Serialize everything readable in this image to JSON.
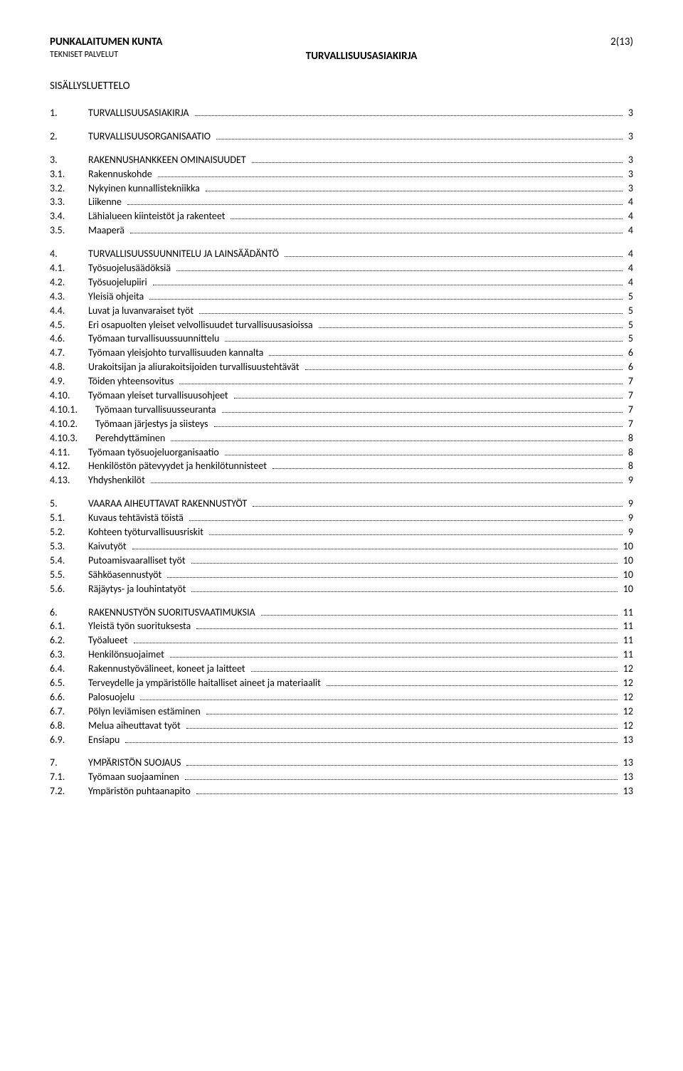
{
  "header": {
    "org": "PUNKALAITUMEN KUNTA",
    "dept": "TEKNISET PALVELUT",
    "docTitle": "TURVALLISUUSASIAKIRJA",
    "pageInfo": "2(13)"
  },
  "tocTitle": "SISÄLLYSLUETTELO",
  "toc": [
    {
      "entries": [
        {
          "num": "1.",
          "text": "TURVALLISUUSASIAKIRJA",
          "page": "3",
          "level": 0
        }
      ]
    },
    {
      "entries": [
        {
          "num": "2.",
          "text": "TURVALLISUUSORGANISAATIO",
          "page": "3",
          "level": 0
        }
      ]
    },
    {
      "entries": [
        {
          "num": "3.",
          "text": "RAKENNUSHANKKEEN OMINAISUUDET",
          "page": "3",
          "level": 0
        },
        {
          "num": "3.1.",
          "text": "Rakennuskohde",
          "page": "3",
          "level": 1
        },
        {
          "num": "3.2.",
          "text": "Nykyinen kunnallistekniikka",
          "page": "3",
          "level": 1
        },
        {
          "num": "3.3.",
          "text": "Liikenne",
          "page": "4",
          "level": 1
        },
        {
          "num": "3.4.",
          "text": "Lähialueen kiinteistöt ja rakenteet",
          "page": "4",
          "level": 1
        },
        {
          "num": "3.5.",
          "text": "Maaperä",
          "page": "4",
          "level": 1
        }
      ]
    },
    {
      "entries": [
        {
          "num": "4.",
          "text": "TURVALLISUUSSUUNNITELU JA LAINSÄÄDÄNTÖ",
          "page": "4",
          "level": 0
        },
        {
          "num": "4.1.",
          "text": "Työsuojelusäädöksiä",
          "page": "4",
          "level": 1
        },
        {
          "num": "4.2.",
          "text": "Työsuojelupiiri",
          "page": "4",
          "level": 1
        },
        {
          "num": "4.3.",
          "text": "Yleisiä ohjeita",
          "page": "5",
          "level": 1
        },
        {
          "num": "4.4.",
          "text": "Luvat ja luvanvaraiset työt",
          "page": "5",
          "level": 1
        },
        {
          "num": "4.5.",
          "text": "Eri osapuolten yleiset velvollisuudet turvallisuusasioissa",
          "page": "5",
          "level": 1
        },
        {
          "num": "4.6.",
          "text": "Työmaan turvallisuussuunnittelu",
          "page": "5",
          "level": 1
        },
        {
          "num": "4.7.",
          "text": "Työmaan yleisjohto turvallisuuden kannalta",
          "page": "6",
          "level": 1
        },
        {
          "num": "4.8.",
          "text": "Urakoitsijan ja aliurakoitsijoiden turvallisuustehtävät",
          "page": "6",
          "level": 1
        },
        {
          "num": "4.9.",
          "text": "Töiden yhteensovitus",
          "page": "7",
          "level": 1
        },
        {
          "num": "4.10.",
          "text": "Työmaan yleiset turvallisuusohjeet",
          "page": "7",
          "level": 1
        },
        {
          "num": "4.10.1.",
          "text": "Työmaan turvallisuusseuranta",
          "page": "7",
          "level": 2
        },
        {
          "num": "4.10.2.",
          "text": "Työmaan järjestys ja siisteys",
          "page": "7",
          "level": 2
        },
        {
          "num": "4.10.3.",
          "text": "Perehdyttäminen",
          "page": "8",
          "level": 2
        },
        {
          "num": "4.11.",
          "text": "Työmaan työsuojeluorganisaatio",
          "page": "8",
          "level": 1
        },
        {
          "num": "4.12.",
          "text": "Henkilöstön pätevyydet ja henkilötunnisteet",
          "page": "8",
          "level": 1
        },
        {
          "num": "4.13.",
          "text": "Yhdyshenkilöt",
          "page": "9",
          "level": 1
        }
      ]
    },
    {
      "entries": [
        {
          "num": "5.",
          "text": "VAARAA AIHEUTTAVAT RAKENNUSTYÖT",
          "page": "9",
          "level": 0
        },
        {
          "num": "5.1.",
          "text": "Kuvaus tehtävistä töistä",
          "page": "9",
          "level": 1
        },
        {
          "num": "5.2.",
          "text": "Kohteen työturvallisuusriskit",
          "page": "9",
          "level": 1
        },
        {
          "num": "5.3.",
          "text": "Kaivutyöt",
          "page": "10",
          "level": 1
        },
        {
          "num": "5.4.",
          "text": "Putoamisvaaralliset työt",
          "page": "10",
          "level": 1
        },
        {
          "num": "5.5.",
          "text": "Sähköasennustyöt",
          "page": "10",
          "level": 1
        },
        {
          "num": "5.6.",
          "text": "Räjäytys- ja louhintatyöt",
          "page": "10",
          "level": 1
        }
      ]
    },
    {
      "entries": [
        {
          "num": "6.",
          "text": "RAKENNUSTYÖN SUORITUSVAATIMUKSIA",
          "page": "11",
          "level": 0
        },
        {
          "num": "6.1.",
          "text": "Yleistä työn suorituksesta",
          "page": "11",
          "level": 1
        },
        {
          "num": "6.2.",
          "text": "Työalueet",
          "page": "11",
          "level": 1
        },
        {
          "num": "6.3.",
          "text": "Henkilönsuojaimet",
          "page": "11",
          "level": 1
        },
        {
          "num": "6.4.",
          "text": "Rakennustyövälineet, koneet ja laitteet",
          "page": "12",
          "level": 1
        },
        {
          "num": "6.5.",
          "text": "Terveydelle ja ympäristölle haitalliset aineet ja materiaalit",
          "page": "12",
          "level": 1
        },
        {
          "num": "6.6.",
          "text": "Palosuojelu",
          "page": "12",
          "level": 1
        },
        {
          "num": "6.7.",
          "text": "Pölyn leviämisen estäminen",
          "page": "12",
          "level": 1
        },
        {
          "num": "6.8.",
          "text": "Melua aiheuttavat työt",
          "page": "12",
          "level": 1
        },
        {
          "num": "6.9.",
          "text": "Ensiapu",
          "page": "13",
          "level": 1
        }
      ]
    },
    {
      "entries": [
        {
          "num": "7.",
          "text": "YMPÄRISTÖN SUOJAUS",
          "page": "13",
          "level": 0
        },
        {
          "num": "7.1.",
          "text": "Työmaan suojaaminen",
          "page": "13",
          "level": 1
        },
        {
          "num": "7.2.",
          "text": "Ympäristön puhtaanapito",
          "page": "13",
          "level": 1
        }
      ]
    }
  ]
}
